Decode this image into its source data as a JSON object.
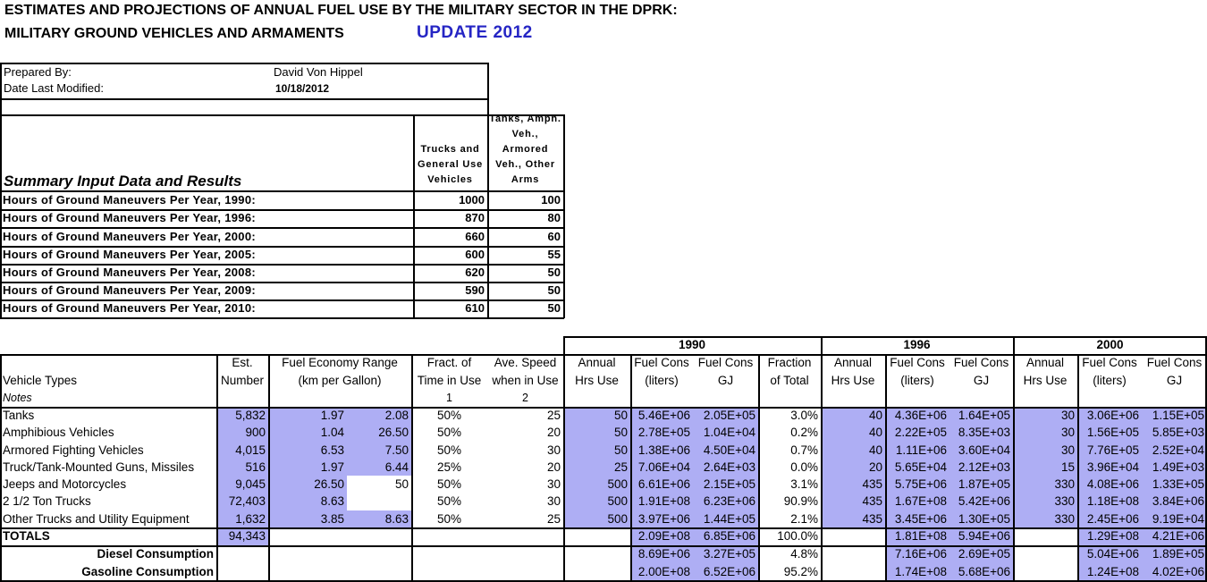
{
  "title": {
    "line1": "ESTIMATES AND PROJECTIONS OF ANNUAL FUEL USE BY THE MILITARY SECTOR IN THE DPRK:",
    "line2": "MILITARY GROUND VEHICLES AND ARMAMENTS",
    "update": "UPDATE 2012"
  },
  "prepared": {
    "prepared_by_label": "Prepared By:",
    "prepared_by": "David Von Hippel",
    "date_label": "Date Last Modified:",
    "date": "10/18/2012"
  },
  "summary": {
    "title": "Summary Input Data and Results",
    "col_headers": [
      "Trucks and General Use Vehicles",
      "Tanks, Amph. Veh., Armored Veh., Other Arms"
    ],
    "rows": [
      [
        "Hours of Ground Maneuvers Per Year, 1990:",
        1000,
        100
      ],
      [
        "Hours of Ground Maneuvers Per Year, 1996:",
        870,
        80
      ],
      [
        "Hours of Ground Maneuvers Per Year, 2000:",
        660,
        60
      ],
      [
        "Hours of Ground Maneuvers Per Year, 2005:",
        600,
        55
      ],
      [
        "Hours of Ground Maneuvers Per Year, 2008:",
        620,
        50
      ],
      [
        "Hours of Ground Maneuvers Per Year, 2009:",
        590,
        50
      ],
      [
        "Hours of Ground Maneuvers Per Year, 2010:",
        610,
        50
      ]
    ]
  },
  "main": {
    "years": [
      "1990",
      "1996",
      "2000"
    ],
    "header_rows": [
      [
        null,
        "Est.",
        "Fuel Economy Range",
        null,
        "Fract. of",
        "Ave. Speed",
        "Annual",
        "Fuel Cons",
        "Fuel Cons",
        "Fraction",
        "Annual",
        "Fuel Cons",
        "Fuel Cons",
        "Annual",
        "Fuel Cons",
        "Fuel Cons"
      ],
      [
        "Vehicle Types",
        "Number",
        "(km per Gallon)",
        null,
        "Time in Use",
        "when in Use",
        "Hrs Use",
        "(liters)",
        "GJ",
        "of Total",
        "Hrs Use",
        "(liters)",
        "GJ",
        "Hrs Use",
        "(liters)",
        "GJ"
      ],
      [
        "Notes",
        null,
        null,
        null,
        "1",
        "2",
        null,
        null,
        null,
        null,
        null,
        null,
        null,
        null,
        null,
        null
      ]
    ],
    "rows": [
      [
        "Tanks",
        "5,832",
        "1.97",
        "2.08",
        "50%",
        25,
        50,
        "5.46E+06",
        "2.05E+05",
        "3.0%",
        40,
        "4.36E+06",
        "1.64E+05",
        30,
        "3.06E+06",
        "1.15E+05"
      ],
      [
        "Amphibious Vehicles",
        "900",
        "1.04",
        "26.50",
        "50%",
        20,
        50,
        "2.78E+05",
        "1.04E+04",
        "0.2%",
        40,
        "2.22E+05",
        "8.35E+03",
        30,
        "1.56E+05",
        "5.85E+03"
      ],
      [
        "Armored Fighting Vehicles",
        "4,015",
        "6.53",
        "7.50",
        "50%",
        30,
        50,
        "1.38E+06",
        "4.50E+04",
        "0.7%",
        40,
        "1.11E+06",
        "3.60E+04",
        30,
        "7.76E+05",
        "2.52E+04"
      ],
      [
        "Truck/Tank-Mounted Guns, Missiles",
        "516",
        "1.97",
        "6.44",
        "25%",
        20,
        25,
        "7.06E+04",
        "2.64E+03",
        "0.0%",
        20,
        "5.65E+04",
        "2.12E+03",
        15,
        "3.96E+04",
        "1.49E+03"
      ],
      [
        "Jeeps and Motorcycles",
        "9,045",
        "26.50",
        50,
        "50%",
        30,
        500,
        "6.61E+06",
        "2.15E+05",
        "3.1%",
        435,
        "5.75E+06",
        "1.87E+05",
        330,
        "4.08E+06",
        "1.33E+05"
      ],
      [
        "2 1/2 Ton Trucks",
        "72,403",
        "8.63",
        null,
        "50%",
        30,
        500,
        "1.91E+08",
        "6.23E+06",
        "90.9%",
        435,
        "1.67E+08",
        "5.42E+06",
        330,
        "1.18E+08",
        "3.84E+06"
      ],
      [
        "Other Trucks and Utility Equipment",
        "1,632",
        "3.85",
        "8.63",
        "50%",
        25,
        500,
        "3.97E+06",
        "1.44E+05",
        "2.1%",
        435,
        "3.45E+06",
        "1.30E+05",
        330,
        "2.45E+06",
        "9.19E+04"
      ]
    ],
    "totals": [
      "TOTALS",
      "94,343",
      null,
      null,
      null,
      null,
      null,
      "2.09E+08",
      "6.85E+06",
      "100.0%",
      null,
      "1.81E+08",
      "5.94E+06",
      null,
      "1.29E+08",
      "4.21E+06"
    ],
    "diesel": [
      "Diesel Consumption",
      null,
      null,
      null,
      null,
      null,
      null,
      "8.69E+06",
      "3.27E+05",
      "4.8%",
      null,
      "7.16E+06",
      "2.69E+05",
      null,
      "5.04E+06",
      "1.89E+05"
    ],
    "gasoline": [
      "Gasoline Consumption",
      null,
      null,
      null,
      null,
      null,
      null,
      "2.00E+08",
      "6.52E+06",
      "95.2%",
      null,
      "1.74E+08",
      "5.68E+06",
      null,
      "1.24E+08",
      "4.02E+06"
    ]
  }
}
